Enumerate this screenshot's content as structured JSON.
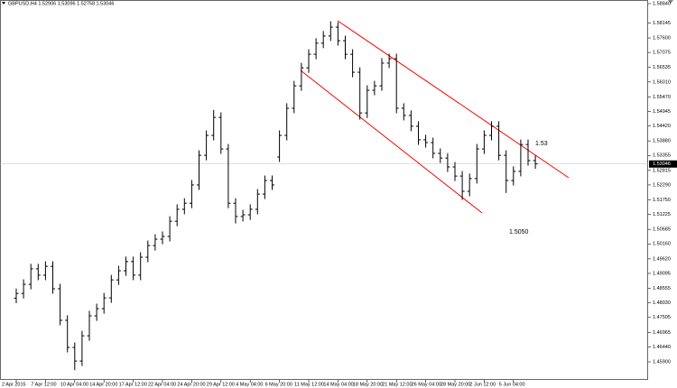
{
  "chart_data": {
    "type": "ohlc",
    "title": "GBPUSD,H4  1.52906 1.53096 1.52758 1.53046",
    "categories": [
      "2 Apr 2015",
      null,
      null,
      null,
      "7 Apr 12:00",
      null,
      null,
      null,
      "10 Apr 04:00",
      null,
      null,
      null,
      "14 Apr 20:00",
      null,
      null,
      null,
      "17 Apr 12:00",
      null,
      null,
      null,
      "22 Apr 04:00",
      null,
      null,
      null,
      "24 Apr 20:00",
      null,
      null,
      null,
      "29 Apr 12:00",
      null,
      null,
      null,
      "4 May 04:00",
      null,
      null,
      null,
      "6 May 20:00",
      null,
      null,
      null,
      "11 May 12:00",
      null,
      null,
      null,
      "14 May 04:00",
      null,
      null,
      null,
      "18 May 20:00",
      null,
      null,
      null,
      "21 May 12:00",
      null,
      null,
      null,
      "26 May 04:00",
      null,
      null,
      null,
      "28 May 20:00",
      null,
      null,
      null,
      "2 Jun 12:00",
      null,
      null,
      null,
      "5 Jun 04:00",
      null,
      null,
      null
    ],
    "open": [
      1.482,
      1.4837,
      1.487,
      1.4926,
      1.4903,
      1.4935,
      1.4854,
      1.474,
      1.4642,
      1.4593,
      1.4684,
      1.4756,
      1.4782,
      1.4821,
      1.4886,
      1.4919,
      1.4952,
      1.4903,
      1.4968,
      1.501,
      1.5033,
      1.5043,
      1.5098,
      1.5141,
      1.5163,
      1.5229,
      1.5336,
      1.5408,
      1.5473,
      1.5359,
      1.5163,
      1.5115,
      1.5121,
      1.5141,
      1.5196,
      1.5245,
      1.533,
      1.5408,
      1.5506,
      1.5587,
      1.5652,
      1.5701,
      1.5741,
      1.5767,
      1.5799,
      1.575,
      1.5701,
      1.5636,
      1.5489,
      1.5571,
      1.5587,
      1.5669,
      1.5685,
      1.5506,
      1.548,
      1.5441,
      1.5392,
      1.5382,
      1.5343,
      1.5326,
      1.5294,
      1.5261,
      1.5206,
      1.5252,
      1.5359,
      1.5408,
      1.5441,
      1.5336,
      1.5245,
      1.5278,
      1.5375,
      1.5317
    ],
    "high": [
      1.4855,
      1.4888,
      1.4944,
      1.4944,
      1.4953,
      1.4953,
      1.4872,
      1.4758,
      1.466,
      1.4702,
      1.4774,
      1.48,
      1.4839,
      1.4904,
      1.4937,
      1.497,
      1.497,
      1.4986,
      1.5028,
      1.5051,
      1.5061,
      1.5116,
      1.5159,
      1.5181,
      1.5247,
      1.5354,
      1.5426,
      1.55,
      1.5491,
      1.5377,
      1.5181,
      1.5139,
      1.5159,
      1.5214,
      1.5263,
      1.5263,
      1.5426,
      1.5524,
      1.5605,
      1.567,
      1.5719,
      1.5759,
      1.5785,
      1.582,
      1.5817,
      1.5768,
      1.5719,
      1.5654,
      1.5589,
      1.5605,
      1.5687,
      1.5703,
      1.5703,
      1.5524,
      1.5498,
      1.5459,
      1.541,
      1.54,
      1.5361,
      1.5344,
      1.5312,
      1.5279,
      1.527,
      1.5377,
      1.5426,
      1.5459,
      1.5459,
      1.5354,
      1.5296,
      1.5393,
      1.5393,
      1.5335
    ],
    "low": [
      1.4802,
      1.4819,
      1.4852,
      1.4885,
      1.4885,
      1.4836,
      1.4722,
      1.4624,
      1.456,
      1.4575,
      1.4666,
      1.4738,
      1.4764,
      1.4803,
      1.4868,
      1.4901,
      1.4885,
      1.4885,
      1.495,
      1.4992,
      1.5015,
      1.5025,
      1.508,
      1.5123,
      1.5145,
      1.5211,
      1.5318,
      1.539,
      1.5341,
      1.5145,
      1.509,
      1.5097,
      1.5103,
      1.5123,
      1.5178,
      1.5211,
      1.5312,
      1.539,
      1.5488,
      1.5569,
      1.5634,
      1.5683,
      1.5723,
      1.5749,
      1.5732,
      1.5683,
      1.5618,
      1.5465,
      1.5471,
      1.5553,
      1.5569,
      1.5651,
      1.5488,
      1.5462,
      1.5423,
      1.5374,
      1.5364,
      1.5325,
      1.5308,
      1.5276,
      1.5243,
      1.5175,
      1.5188,
      1.5234,
      1.5341,
      1.539,
      1.5318,
      1.52,
      1.5227,
      1.526,
      1.5299,
      1.5287
    ],
    "close": [
      1.4837,
      1.487,
      1.4926,
      1.4903,
      1.4935,
      1.4854,
      1.474,
      1.4642,
      1.4593,
      1.4684,
      1.4756,
      1.4782,
      1.4821,
      1.4886,
      1.4919,
      1.4952,
      1.4903,
      1.4968,
      1.501,
      1.5033,
      1.5043,
      1.5098,
      1.5141,
      1.5163,
      1.5229,
      1.5336,
      1.5408,
      1.5473,
      1.5359,
      1.5163,
      1.5115,
      1.5121,
      1.5141,
      1.5196,
      1.5245,
      1.5229,
      1.5408,
      1.5506,
      1.5587,
      1.5652,
      1.5701,
      1.5741,
      1.5767,
      1.5799,
      1.575,
      1.5701,
      1.5636,
      1.5489,
      1.5571,
      1.5587,
      1.5669,
      1.5685,
      1.5506,
      1.548,
      1.5441,
      1.5392,
      1.5382,
      1.5343,
      1.5326,
      1.5294,
      1.5261,
      1.5206,
      1.5252,
      1.5359,
      1.5408,
      1.5441,
      1.5336,
      1.5245,
      1.5278,
      1.5375,
      1.5317,
      1.5305
    ],
    "color": "#000000",
    "current_price": 1.53046,
    "ylim": [
      1.45248,
      1.5897
    ],
    "yticks": [
      {
        "value": 1.5884,
        "label": "1.58840"
      },
      1.58145,
      {
        "value": 1.576,
        "label": "1.57600"
      },
      1.57075,
      1.56535,
      {
        "value": 1.5601,
        "label": "1.56010"
      },
      {
        "value": 1.5547,
        "label": "1.55470"
      },
      1.54945,
      {
        "value": 1.5442,
        "label": "1.54420"
      },
      {
        "value": 1.5388,
        "label": "1.53880"
      },
      1.53355,
      1.52815,
      {
        "value": 1.5229,
        "label": "1.52290"
      },
      {
        "value": 1.5175,
        "label": "1.51750"
      },
      1.51225,
      1.50685,
      {
        "value": 1.5016,
        "label": "1.50160"
      },
      {
        "value": 1.4962,
        "label": "1.49620"
      },
      1.49095,
      1.48555,
      {
        "value": 1.4803,
        "label": "1.48030"
      },
      1.47505,
      1.46965,
      {
        "value": 1.4644,
        "label": "1.46440"
      },
      {
        "value": 1.459,
        "label": "1.45900"
      }
    ],
    "annotations": [
      "1.53",
      "1.5050"
    ],
    "trendline_color": "#ff0000"
  }
}
